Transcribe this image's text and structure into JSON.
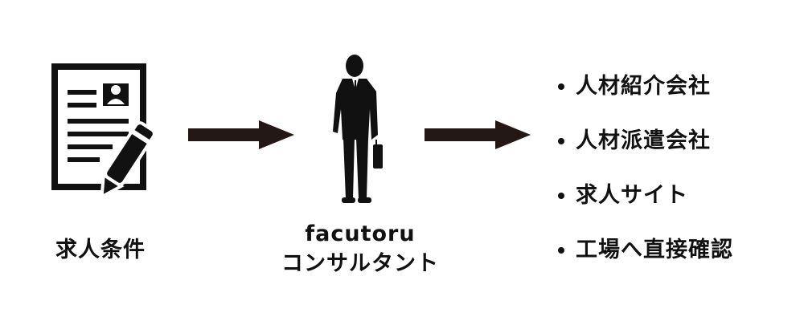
{
  "left": {
    "icon": "document-with-pen-icon",
    "label": "求人条件"
  },
  "center": {
    "icon": "businessman-silhouette-icon",
    "label_line1": "facutoru",
    "label_line2": "コンサルタント"
  },
  "right": {
    "items": [
      {
        "label": "人材紹介会社"
      },
      {
        "label": "人材派遣会社"
      },
      {
        "label": "求人サイト"
      },
      {
        "label": "工場へ直接確認"
      }
    ]
  },
  "arrows": [
    "arrow-right-icon",
    "arrow-right-icon"
  ],
  "colors": {
    "ink": "#111111",
    "arrow": "#231815",
    "background": "#ffffff"
  }
}
